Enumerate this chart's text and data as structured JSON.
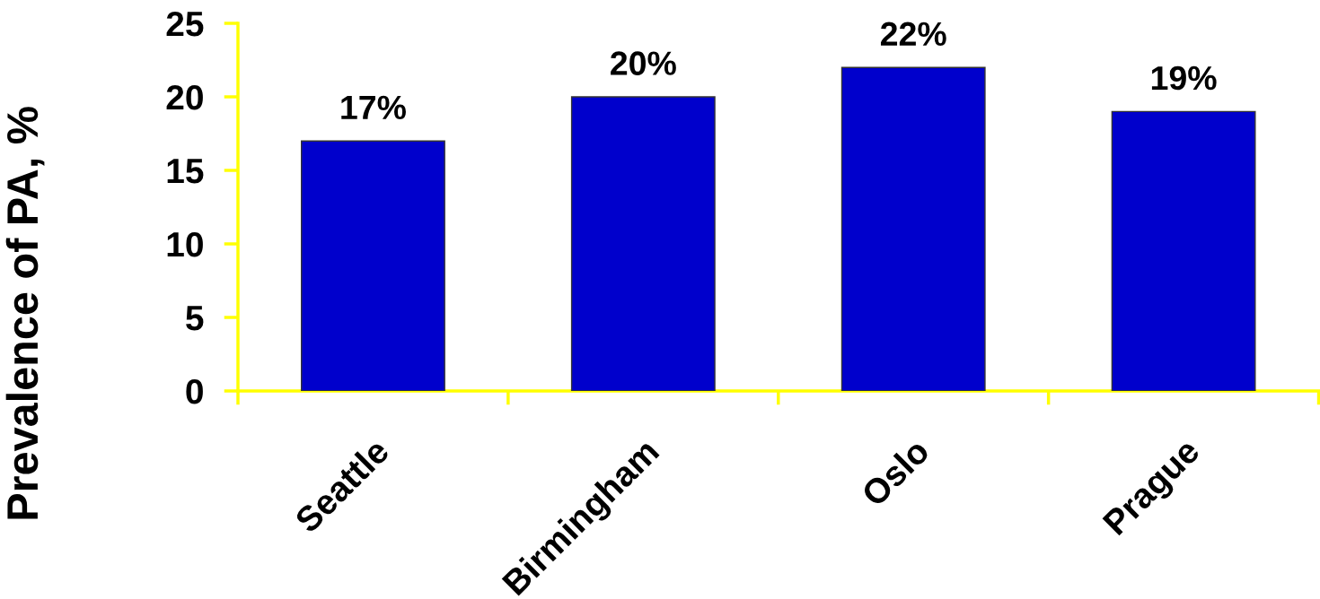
{
  "chart_data": {
    "type": "bar",
    "ylabel": "Prevalence of PA, %",
    "categories": [
      "Seattle",
      "Birmingham",
      "Oslo",
      "Prague"
    ],
    "values": [
      17,
      20,
      22,
      19
    ],
    "color": "#0000cc",
    "value_labels": [
      "17%",
      "20%",
      "22%",
      "19%"
    ],
    "ylim": [
      0,
      25
    ],
    "yticks": [
      0,
      5,
      10,
      15,
      20,
      25
    ],
    "grid": false,
    "legend": false
  }
}
